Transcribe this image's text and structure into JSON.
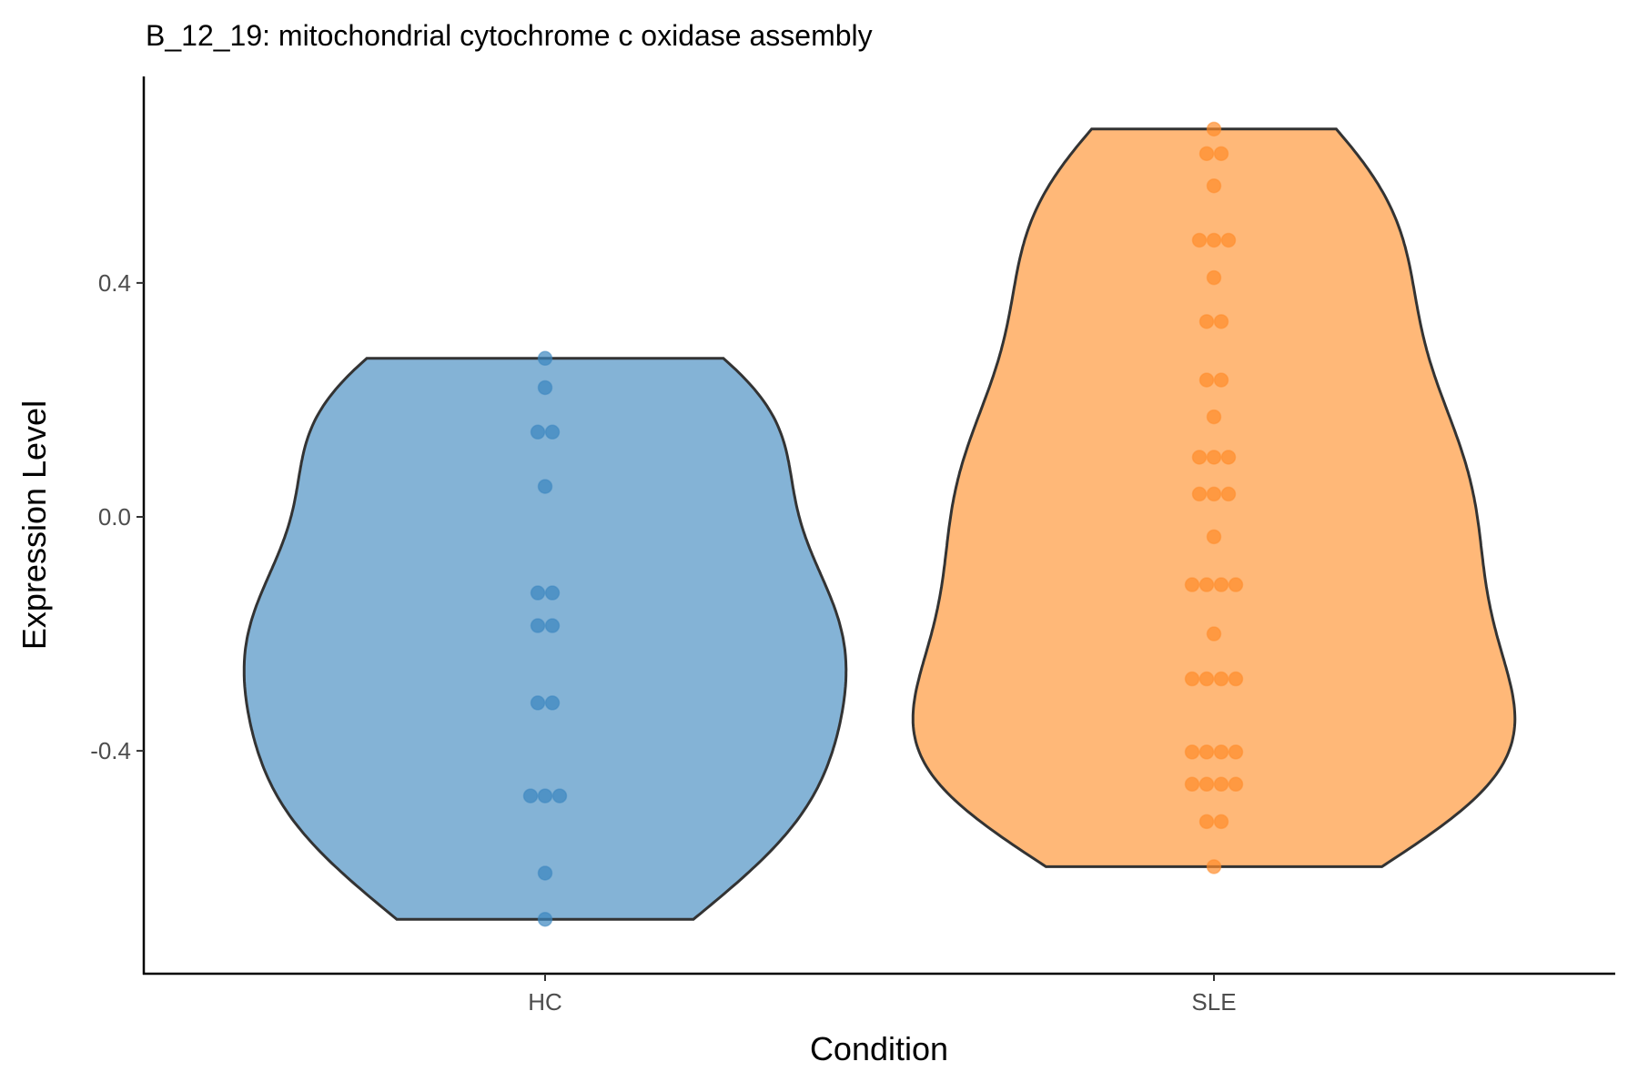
{
  "chart_data": {
    "type": "violin",
    "title": "B_12_19: mitochondrial cytochrome c oxidase assembly",
    "xlabel": "Condition",
    "ylabel": "Expression Level",
    "categories": [
      "HC",
      "SLE"
    ],
    "ylim": [
      -0.781,
      0.753
    ],
    "yticks": [
      0.4,
      0.0,
      -0.4
    ],
    "ytick_labels": [
      "0.4",
      "0.0",
      "-0.4"
    ],
    "grid": false,
    "legend": "none",
    "series": [
      {
        "name": "HC",
        "fill": "#84b3d6",
        "point_color": "#3a86bf",
        "values": [
          0.271,
          0.221,
          0.145,
          0.145,
          0.052,
          -0.13,
          -0.13,
          -0.186,
          -0.186,
          -0.318,
          -0.318,
          -0.477,
          -0.477,
          -0.477,
          -0.609,
          -0.688
        ]
      },
      {
        "name": "SLE",
        "fill": "#ffb878",
        "point_color": "#ff8c2a",
        "values": [
          0.663,
          0.621,
          0.621,
          0.566,
          0.473,
          0.473,
          0.473,
          0.409,
          0.334,
          0.334,
          0.234,
          0.234,
          0.171,
          0.102,
          0.102,
          0.102,
          0.039,
          0.039,
          0.039,
          -0.034,
          -0.116,
          -0.116,
          -0.116,
          -0.116,
          -0.2,
          -0.277,
          -0.277,
          -0.277,
          -0.277,
          -0.402,
          -0.402,
          -0.402,
          -0.402,
          -0.457,
          -0.457,
          -0.457,
          -0.457,
          -0.521,
          -0.521,
          -0.598
        ]
      }
    ]
  }
}
